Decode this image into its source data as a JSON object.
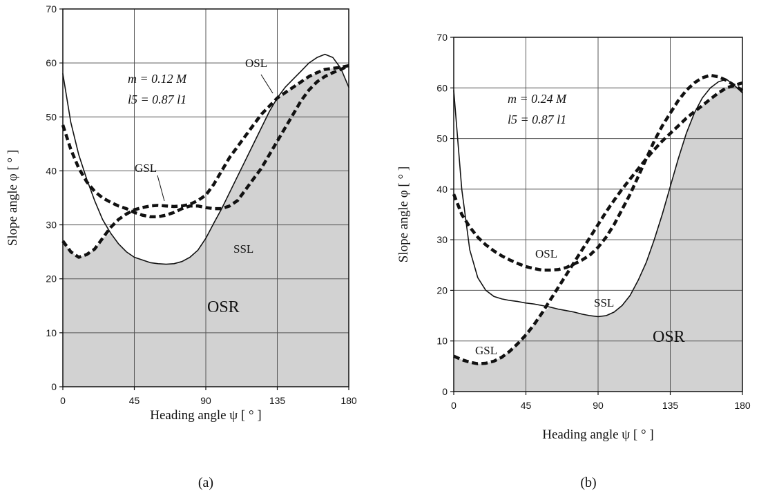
{
  "chart_data": [
    {
      "type": "line",
      "panel_label": "(a)",
      "xlabel": "Heading angle ψ [ ° ]",
      "ylabel": "Slope angle φ [ ° ]",
      "xlim": [
        0,
        180
      ],
      "ylim": [
        0,
        70
      ],
      "xticks": [
        "0",
        "45",
        "90",
        "135",
        "180"
      ],
      "yticks": [
        "0",
        "10",
        "20",
        "30",
        "40",
        "50",
        "60",
        "70"
      ],
      "grid": true,
      "annotation_lines": [
        "m = 0.12 M",
        "l5 = 0.87 l1"
      ],
      "region_label": "OSR",
      "series": [
        {
          "name": "SSL",
          "style": "solid",
          "x": [
            0,
            5,
            10,
            15,
            20,
            25,
            30,
            35,
            40,
            45,
            50,
            55,
            60,
            65,
            70,
            75,
            80,
            85,
            90,
            95,
            100,
            105,
            110,
            115,
            120,
            125,
            130,
            135,
            140,
            145,
            150,
            155,
            160,
            165,
            170,
            175,
            180
          ],
          "y": [
            58,
            49,
            43,
            38.5,
            34.5,
            31,
            28.5,
            26.5,
            25,
            24,
            23.5,
            23,
            22.8,
            22.7,
            22.8,
            23.2,
            24,
            25.3,
            27.5,
            30.3,
            33,
            36,
            39,
            42,
            45,
            48,
            51,
            53.5,
            55.5,
            57,
            58.5,
            60,
            61,
            61.6,
            61,
            59,
            55.5
          ]
        },
        {
          "name": "OSL",
          "style": "dashed",
          "x": [
            0,
            5,
            10,
            15,
            20,
            25,
            30,
            35,
            40,
            45,
            50,
            55,
            60,
            65,
            70,
            75,
            80,
            85,
            90,
            95,
            100,
            105,
            110,
            115,
            120,
            125,
            130,
            135,
            140,
            145,
            150,
            155,
            160,
            165,
            170,
            175,
            180
          ],
          "y": [
            27,
            25,
            24,
            24.5,
            25.5,
            27.5,
            29.5,
            31,
            32,
            32.8,
            33.2,
            33.5,
            33.6,
            33.5,
            33.4,
            33.5,
            33.8,
            34.5,
            35.5,
            37.5,
            40,
            42.5,
            44.5,
            46.5,
            48.5,
            50.5,
            52,
            53.5,
            54.5,
            55.5,
            56.5,
            57.5,
            58.2,
            58.8,
            59,
            59.2,
            59.5
          ]
        },
        {
          "name": "GSL",
          "style": "dashed",
          "x": [
            0,
            5,
            10,
            15,
            20,
            25,
            30,
            35,
            40,
            45,
            50,
            55,
            60,
            65,
            70,
            75,
            80,
            85,
            90,
            95,
            100,
            105,
            110,
            115,
            120,
            125,
            130,
            135,
            140,
            145,
            150,
            155,
            160,
            165,
            170,
            175,
            180
          ],
          "y": [
            48.5,
            44,
            40.5,
            38,
            36.2,
            35,
            34.2,
            33.5,
            33,
            32.3,
            31.8,
            31.5,
            31.5,
            31.8,
            32.3,
            33,
            33.5,
            33.5,
            33.2,
            33,
            33,
            33.5,
            34.5,
            36.5,
            38.5,
            40.5,
            43,
            45.5,
            48,
            50.5,
            53,
            55,
            56.5,
            57.5,
            58.2,
            58.8,
            59.5
          ]
        }
      ]
    },
    {
      "type": "line",
      "panel_label": "(b)",
      "xlabel": "Heading angle ψ [ ° ]",
      "ylabel": "Slope angle φ [ ° ]",
      "xlim": [
        0,
        180
      ],
      "ylim": [
        0,
        70
      ],
      "xticks": [
        "0",
        "45",
        "90",
        "135",
        "180"
      ],
      "yticks": [
        "0",
        "10",
        "20",
        "30",
        "40",
        "50",
        "60",
        "70"
      ],
      "grid": true,
      "annotation_lines": [
        "m = 0.24 M",
        "l5 = 0.87 l1"
      ],
      "region_label": "OSR",
      "series": [
        {
          "name": "SSL",
          "style": "solid",
          "x": [
            0,
            5,
            10,
            15,
            20,
            25,
            30,
            35,
            40,
            45,
            50,
            55,
            60,
            65,
            70,
            75,
            80,
            85,
            90,
            95,
            100,
            105,
            110,
            115,
            120,
            125,
            130,
            135,
            140,
            145,
            150,
            155,
            160,
            165,
            170,
            175,
            180
          ],
          "y": [
            59.5,
            40,
            28,
            22.5,
            20,
            18.8,
            18.3,
            18,
            17.8,
            17.5,
            17.3,
            17,
            16.7,
            16.3,
            16,
            15.7,
            15.3,
            15,
            14.8,
            15,
            15.7,
            17,
            19,
            22,
            25.5,
            30,
            35,
            40.5,
            46,
            51,
            55,
            58,
            60,
            61.2,
            61.7,
            60.5,
            59
          ]
        },
        {
          "name": "OSL",
          "style": "dashed",
          "x": [
            0,
            5,
            10,
            15,
            20,
            25,
            30,
            35,
            40,
            45,
            50,
            55,
            60,
            65,
            70,
            75,
            80,
            85,
            90,
            95,
            100,
            105,
            110,
            115,
            120,
            125,
            130,
            135,
            140,
            145,
            150,
            155,
            160,
            165,
            170,
            175,
            180
          ],
          "y": [
            39,
            35,
            32.5,
            30.5,
            29,
            27.8,
            26.8,
            26,
            25.3,
            24.7,
            24.3,
            24,
            24,
            24.1,
            24.5,
            25.2,
            26,
            27,
            28.5,
            30.5,
            33,
            36,
            39,
            42.5,
            46,
            49.5,
            52.5,
            55,
            57.5,
            59.5,
            61,
            62,
            62.5,
            62.2,
            61.5,
            60.5,
            59.5
          ]
        },
        {
          "name": "GSL",
          "style": "dashed",
          "x": [
            0,
            5,
            10,
            15,
            20,
            25,
            30,
            35,
            40,
            45,
            50,
            55,
            60,
            65,
            70,
            75,
            80,
            85,
            90,
            95,
            100,
            105,
            110,
            115,
            120,
            125,
            130,
            135,
            140,
            145,
            150,
            155,
            160,
            165,
            170,
            175,
            180
          ],
          "y": [
            7,
            6.3,
            5.8,
            5.5,
            5.6,
            6,
            6.8,
            8,
            9.5,
            11.2,
            13.2,
            15.5,
            18,
            20.5,
            23,
            25.5,
            28,
            30.5,
            33,
            35.5,
            37.8,
            40,
            42,
            44,
            46,
            47.8,
            49.5,
            51,
            52.5,
            54,
            55.3,
            56.5,
            57.8,
            59,
            60,
            60.5,
            61
          ]
        }
      ]
    }
  ]
}
